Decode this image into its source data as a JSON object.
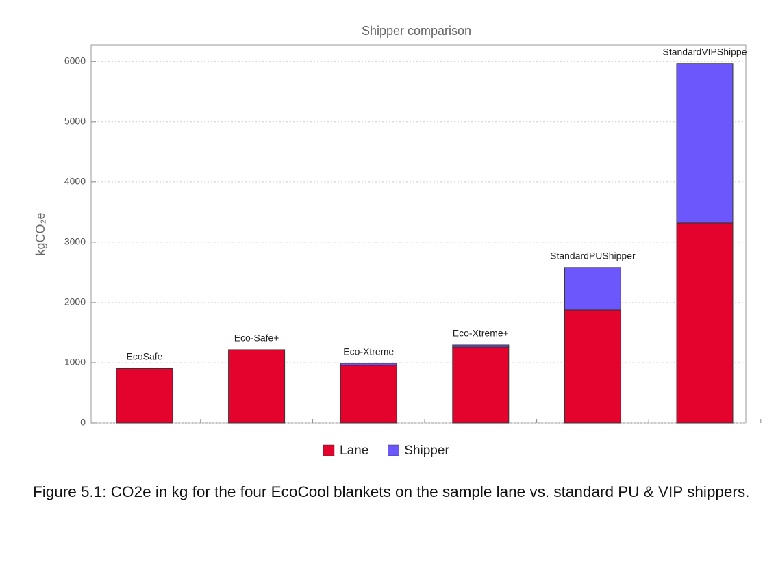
{
  "chart_data": {
    "type": "stacked_bar",
    "title": "Shipper comparison",
    "y_label": "kgCO₂e",
    "categories": [
      "EcoSafe",
      "Eco‐Safe+",
      "Eco‐Xtreme",
      "Eco‐Xtreme+",
      "StandardPUShipper",
      "StandardVIPShippe"
    ],
    "series": [
      {
        "name": "Lane",
        "color": "#e3032d",
        "values": [
          905,
          1210,
          955,
          1260,
          1875,
          3318
        ]
      },
      {
        "name": "Shipper",
        "color": "#6b57fb",
        "values": [
          5,
          6,
          35,
          35,
          705,
          2648
        ]
      }
    ],
    "ylim": [
      0,
      6270
    ],
    "yticks": [
      0,
      1000,
      2000,
      3000,
      4000,
      5000,
      6000
    ],
    "grid": true
  },
  "caption": "Figure 5.1: CO2e in kg for the four EcoCool blankets on the sample lane vs. standard PU & VIP shippers."
}
